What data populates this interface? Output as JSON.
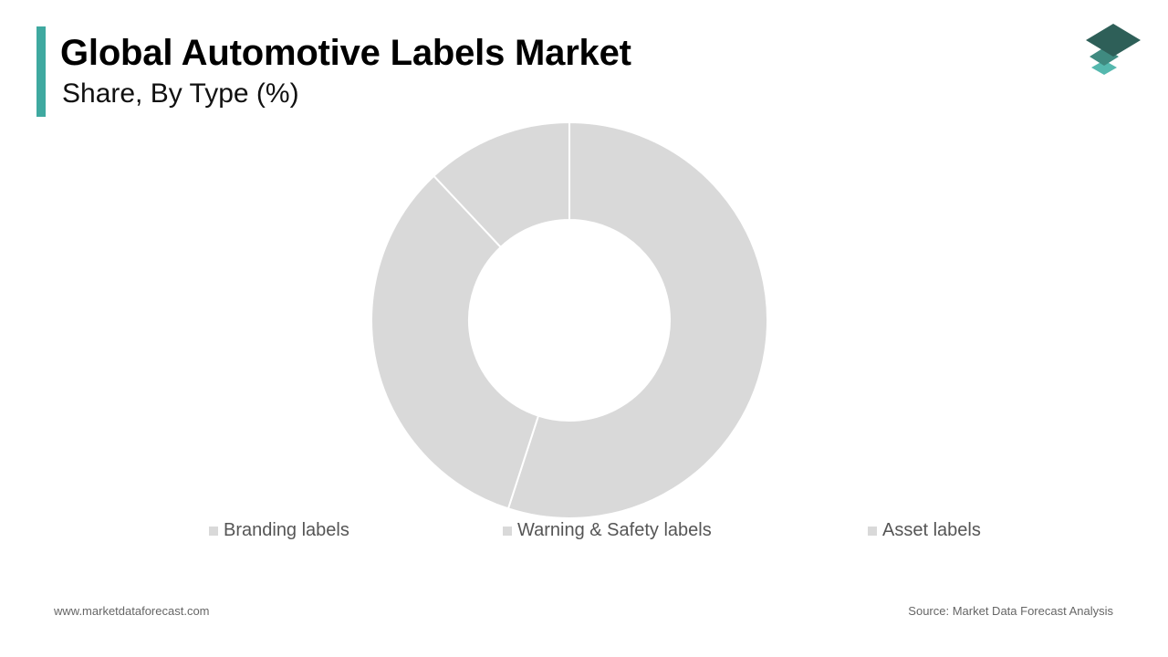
{
  "header": {
    "title": "Global Automotive Labels Market",
    "subtitle": "Share, By Type (%)"
  },
  "logo": {
    "icon": "stacked-layers-icon",
    "colors": [
      "#2e5f58",
      "#3f8a80",
      "#55b8ae"
    ]
  },
  "chart_data": {
    "type": "pie",
    "donut": true,
    "categories": [
      "Branding labels",
      "Warning & Safety labels",
      "Asset labels"
    ],
    "values": [
      55,
      33,
      12
    ],
    "legend": "bottom",
    "slice_color": "#d9d9d9",
    "slice_border_color": "#ffffff",
    "accent_color": "#3fa9a0"
  },
  "footer": {
    "website": "www.marketdataforecast.com",
    "source": "Source: Market Data Forecast Analysis"
  }
}
